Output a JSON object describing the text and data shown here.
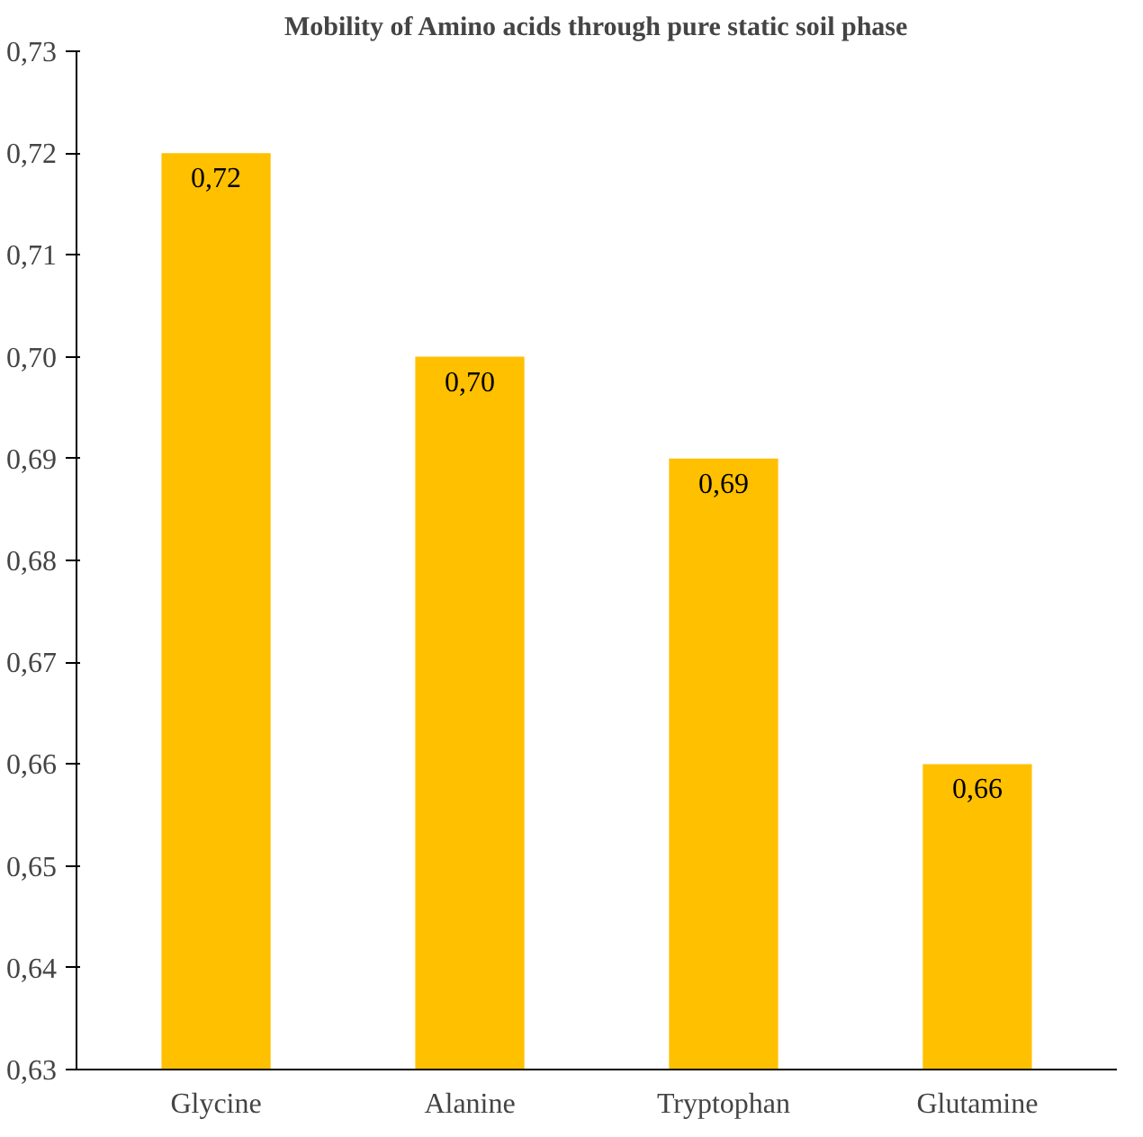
{
  "chart_data": {
    "type": "bar",
    "title": "Mobility of Amino acids through pure static soil phase",
    "categories": [
      "Glycine",
      "Alanine",
      "Tryptophan",
      "Glutamine"
    ],
    "values": [
      0.72,
      0.7,
      0.69,
      0.66
    ],
    "value_labels": [
      "0,72",
      "0,70",
      "0,69",
      "0,66"
    ],
    "color": "#ffc000",
    "ylim": [
      0.63,
      0.73
    ],
    "yticks": [
      {
        "value": 0.63,
        "label": "0,63"
      },
      {
        "value": 0.64,
        "label": "0,64"
      },
      {
        "value": 0.65,
        "label": "0,65"
      },
      {
        "value": 0.66,
        "label": "0,66"
      },
      {
        "value": 0.67,
        "label": "0,67"
      },
      {
        "value": 0.68,
        "label": "0,68"
      },
      {
        "value": 0.69,
        "label": "0,69"
      },
      {
        "value": 0.7,
        "label": "0,70"
      },
      {
        "value": 0.71,
        "label": "0,71"
      },
      {
        "value": 0.72,
        "label": "0,72"
      },
      {
        "value": 0.73,
        "label": "0,73"
      }
    ],
    "grid": false
  }
}
